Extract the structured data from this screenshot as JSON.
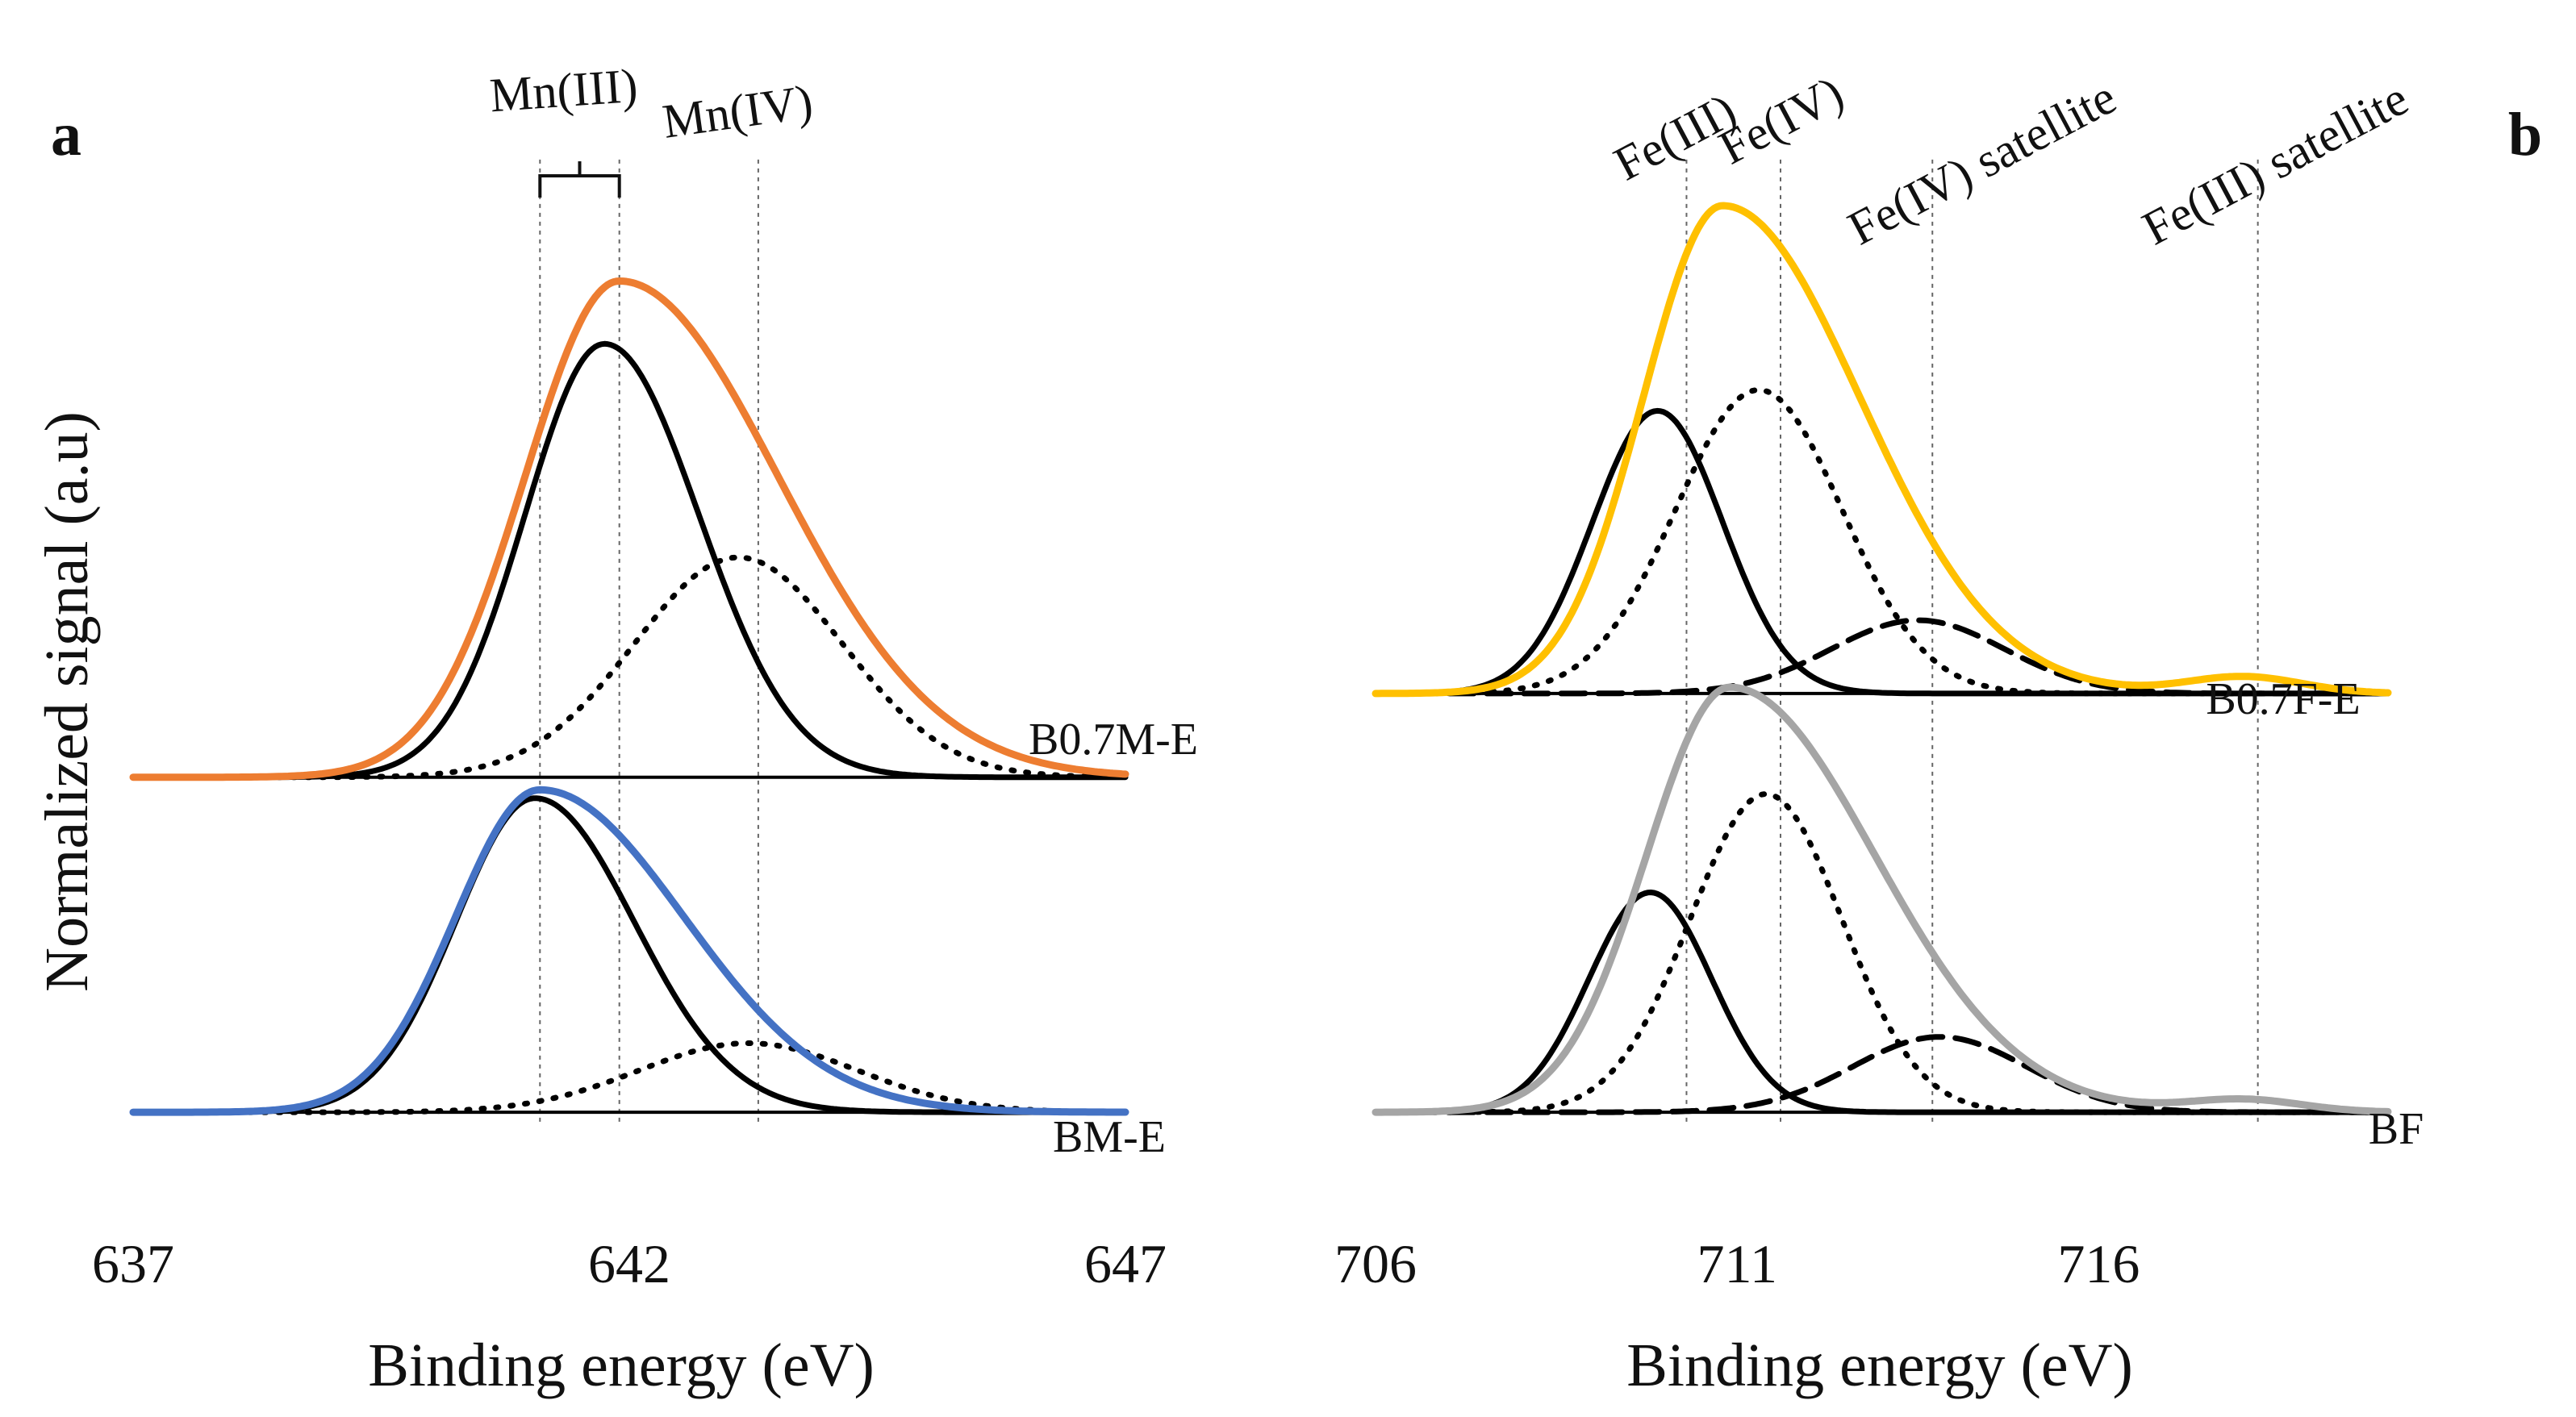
{
  "figure": {
    "ylabel": "Normalized signal (a.u)"
  },
  "chart_data": [
    {
      "type": "line",
      "panel": "a",
      "xlabel": "Binding energy (eV)",
      "ylabel": "Normalized signal (a.u)",
      "xlim": [
        637,
        647
      ],
      "ylim": [
        -0.35,
        4.85
      ],
      "xticks": [
        "637",
        "642",
        "647"
      ],
      "grid": false,
      "reference_lines": [
        {
          "label": "Mn(III)",
          "x": [
            641.1,
            641.9
          ]
        },
        {
          "label": "Mn(IV)",
          "x": [
            643.3
          ]
        }
      ],
      "stacks": [
        {
          "label": "B0.7M-E",
          "offset": 1.6,
          "series": [
            {
              "name": "B0.7M-E envelope",
              "style": "solid",
              "color": "#ED7D31",
              "peaks": [
                [
                  641.9,
                  2.37,
                  0.95,
                  1.6
                ]
              ]
            },
            {
              "name": "Mn(III) component",
              "style": "solid",
              "color": "#000000",
              "peaks": [
                [
                  641.75,
                  2.07,
                  0.8,
                  0.95
                ]
              ]
            },
            {
              "name": "Mn(IV) component",
              "style": "dotted",
              "color": "#000000",
              "peaks": [
                [
                  643.1,
                  1.05,
                  1.05,
                  1.05
                ]
              ]
            }
          ]
        },
        {
          "label": "BM-E",
          "offset": 0,
          "series": [
            {
              "name": "BM-E envelope",
              "style": "solid",
              "color": "#4472C4",
              "peaks": [
                [
                  641.1,
                  1.54,
                  0.85,
                  1.45
                ]
              ]
            },
            {
              "name": "Mn(III) component",
              "style": "solid",
              "color": "#000000",
              "peaks": [
                [
                  641.05,
                  1.5,
                  0.8,
                  1.0
                ]
              ]
            },
            {
              "name": "Mn(IV) component",
              "style": "dotted",
              "color": "#000000",
              "peaks": [
                [
                  643.2,
                  0.33,
                  1.1,
                  1.1
                ]
              ]
            }
          ]
        }
      ]
    },
    {
      "type": "line",
      "panel": "b",
      "xlabel": "Binding energy (eV)",
      "ylabel": "",
      "xlim": [
        706,
        720
      ],
      "ylim": [
        -0.35,
        4.85
      ],
      "xticks": [
        "706",
        "711",
        "716"
      ],
      "grid": false,
      "reference_lines": [
        {
          "label": "Fe(III)",
          "x": [
            710.3
          ]
        },
        {
          "label": "Fe(IV)",
          "x": [
            711.6
          ]
        },
        {
          "label": "Fe(IV) satellite",
          "x": [
            713.7
          ]
        },
        {
          "label": "Fe(III) satellite",
          "x": [
            718.2
          ]
        }
      ],
      "stacks": [
        {
          "label": "B0.7F-E",
          "offset": 2.0,
          "series": [
            {
              "name": "B0.7F-E envelope",
              "style": "solid",
              "color": "#FFC000",
              "peaks": [
                [
                  710.8,
                  2.33,
                  1.1,
                  1.9
                ],
                [
                  718.0,
                  0.08,
                  0.8,
                  0.8
                ]
              ]
            },
            {
              "name": "Fe(III) component",
              "style": "solid",
              "color": "#000000",
              "peaks": [
                [
                  709.9,
                  1.35,
                  0.9,
                  0.9
                ]
              ]
            },
            {
              "name": "Fe(IV) component",
              "style": "dotted",
              "color": "#000000",
              "peaks": [
                [
                  711.3,
                  1.45,
                  1.15,
                  1.15
                ]
              ]
            },
            {
              "name": "Fe(IV) satellite",
              "style": "dashed",
              "color": "#000000",
              "peaks": [
                [
                  713.5,
                  0.35,
                  1.2,
                  1.2
                ]
              ]
            }
          ]
        },
        {
          "label": "BF",
          "offset": 0,
          "series": [
            {
              "name": "BF envelope",
              "style": "solid",
              "color": "#A5A5A5",
              "peaks": [
                [
                  710.9,
                  2.03,
                  1.15,
                  2.0
                ],
                [
                  718.0,
                  0.06,
                  0.8,
                  0.8
                ]
              ]
            },
            {
              "name": "Fe(III) component",
              "style": "solid",
              "color": "#000000",
              "peaks": [
                [
                  709.8,
                  1.05,
                  0.85,
                  0.85
                ]
              ]
            },
            {
              "name": "Fe(IV) component",
              "style": "dotted",
              "color": "#000000",
              "peaks": [
                [
                  711.4,
                  1.52,
                  1.05,
                  1.05
                ]
              ]
            },
            {
              "name": "Fe(IV) satellite",
              "style": "dashed",
              "color": "#000000",
              "peaks": [
                [
                  713.8,
                  0.36,
                  1.2,
                  1.2
                ]
              ]
            }
          ]
        }
      ]
    }
  ]
}
